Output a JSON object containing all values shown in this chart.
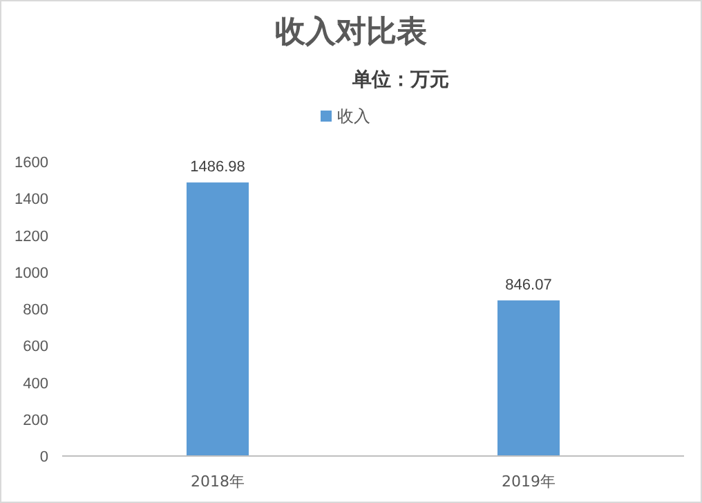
{
  "chart_data": {
    "type": "bar",
    "title": "收入对比表",
    "subtitle": "单位：万元",
    "categories": [
      "2018年",
      "2019年"
    ],
    "series": [
      {
        "name": "收入",
        "color": "#5b9bd5",
        "values": [
          1486.98,
          846.07
        ]
      }
    ],
    "ylim": [
      0,
      1600
    ],
    "yticks": [
      0,
      200,
      400,
      600,
      800,
      1000,
      1200,
      1400,
      1600
    ],
    "grid": false,
    "legend": "top",
    "data_labels": true
  }
}
